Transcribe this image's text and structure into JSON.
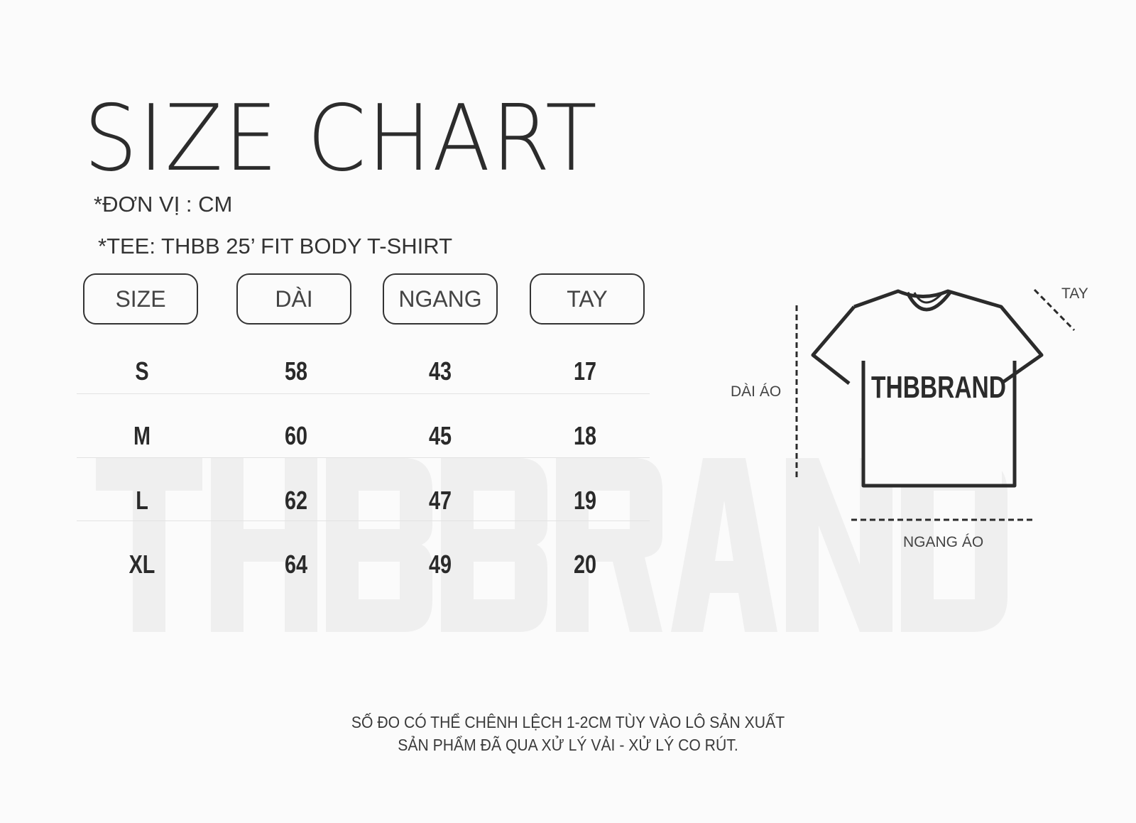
{
  "watermark": "THBBRAND",
  "title": "SIZE CHART",
  "unit_note": "*ĐƠN VỊ : CM",
  "product_note": "*TEE: THBB 25’ FIT BODY T-SHIRT",
  "table": {
    "headers": [
      "SIZE",
      "DÀI",
      "NGANG",
      "TAY"
    ],
    "rows": [
      [
        "S",
        "58",
        "43",
        "17"
      ],
      [
        "M",
        "60",
        "45",
        "18"
      ],
      [
        "L",
        "62",
        "47",
        "19"
      ],
      [
        "XL",
        "64",
        "49",
        "20"
      ]
    ]
  },
  "diagram": {
    "shirt_print": "THBBRAND",
    "length_label": "DÀI ÁO",
    "width_label": "NGANG ÁO",
    "sleeve_label": "TAY"
  },
  "footer": {
    "line1": "SỐ ĐO CÓ THỂ CHÊNH LỆCH 1-2CM TÙY VÀO LÔ SẢN XUẤT",
    "line2": "SẢN PHẨM ĐÃ QUA XỬ LÝ VẢI - XỬ LÝ CO RÚT."
  }
}
